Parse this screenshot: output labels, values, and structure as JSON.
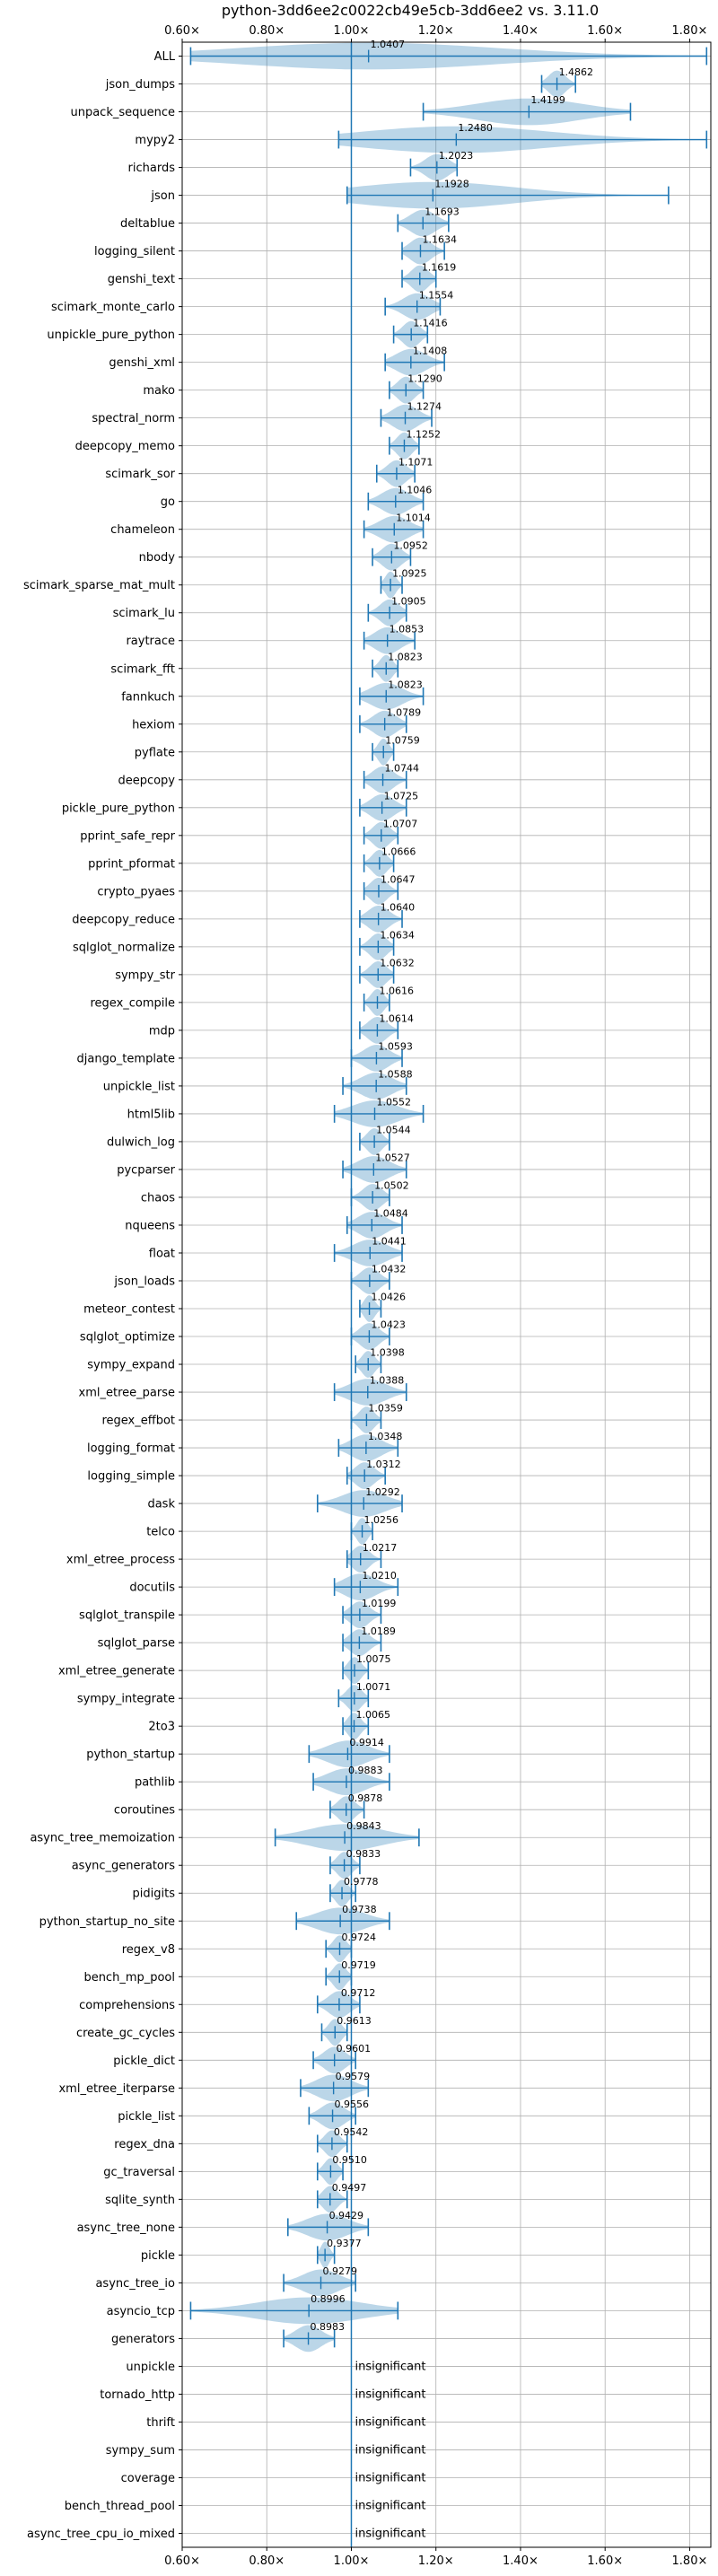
{
  "chart_data": {
    "type": "violin",
    "title": "python-3dd6ee2c0022cb49e5cb-3dd6ee2 vs. 3.11.0",
    "xlim": [
      0.6,
      1.85
    ],
    "xticks": [
      0.6,
      0.8,
      1.0,
      1.2,
      1.4,
      1.6,
      1.8
    ],
    "xtick_labels": [
      "0.60×",
      "0.80×",
      "1.00×",
      "1.20×",
      "1.40×",
      "1.60×",
      "1.80×"
    ],
    "reference_line": 1.0,
    "grid": true,
    "insignificant_text": "insignificant",
    "colors": {
      "violin": "#1f77b4",
      "line": "#1f77b4",
      "grid": "#b0b0b0"
    },
    "benchmarks": [
      {
        "name": "ALL",
        "median": 1.0407,
        "label": "1.0407",
        "min": 0.62,
        "max": 1.84,
        "spread": 0.09
      },
      {
        "name": "json_dumps",
        "median": 1.4862,
        "label": "1.4862",
        "min": 1.45,
        "max": 1.53,
        "spread": 0.03
      },
      {
        "name": "unpack_sequence",
        "median": 1.4199,
        "label": "1.4199",
        "min": 1.17,
        "max": 1.66,
        "spread": 0.1
      },
      {
        "name": "mypy2",
        "median": 1.248,
        "label": "1.2480",
        "min": 0.97,
        "max": 1.84,
        "spread": 0.09
      },
      {
        "name": "richards",
        "median": 1.2023,
        "label": "1.2023",
        "min": 1.14,
        "max": 1.25,
        "spread": 0.03
      },
      {
        "name": "json",
        "median": 1.1928,
        "label": "1.1928",
        "min": 0.99,
        "max": 1.75,
        "spread": 0.09
      },
      {
        "name": "deltablue",
        "median": 1.1693,
        "label": "1.1693",
        "min": 1.11,
        "max": 1.23,
        "spread": 0.03
      },
      {
        "name": "logging_silent",
        "median": 1.1634,
        "label": "1.1634",
        "min": 1.12,
        "max": 1.22,
        "spread": 0.03
      },
      {
        "name": "genshi_text",
        "median": 1.1619,
        "label": "1.1619",
        "min": 1.12,
        "max": 1.2,
        "spread": 0.03
      },
      {
        "name": "scimark_monte_carlo",
        "median": 1.1554,
        "label": "1.1554",
        "min": 1.08,
        "max": 1.21,
        "spread": 0.03
      },
      {
        "name": "unpickle_pure_python",
        "median": 1.1416,
        "label": "1.1416",
        "min": 1.1,
        "max": 1.18,
        "spread": 0.03
      },
      {
        "name": "genshi_xml",
        "median": 1.1408,
        "label": "1.1408",
        "min": 1.08,
        "max": 1.22,
        "spread": 0.03
      },
      {
        "name": "mako",
        "median": 1.129,
        "label": "1.1290",
        "min": 1.09,
        "max": 1.17,
        "spread": 0.03
      },
      {
        "name": "spectral_norm",
        "median": 1.1274,
        "label": "1.1274",
        "min": 1.07,
        "max": 1.19,
        "spread": 0.03
      },
      {
        "name": "deepcopy_memo",
        "median": 1.1252,
        "label": "1.1252",
        "min": 1.09,
        "max": 1.16,
        "spread": 0.03
      },
      {
        "name": "scimark_sor",
        "median": 1.1071,
        "label": "1.1071",
        "min": 1.06,
        "max": 1.15,
        "spread": 0.03
      },
      {
        "name": "go",
        "median": 1.1046,
        "label": "1.1046",
        "min": 1.04,
        "max": 1.17,
        "spread": 0.03
      },
      {
        "name": "chameleon",
        "median": 1.1014,
        "label": "1.1014",
        "min": 1.03,
        "max": 1.17,
        "spread": 0.03
      },
      {
        "name": "nbody",
        "median": 1.0952,
        "label": "1.0952",
        "min": 1.05,
        "max": 1.14,
        "spread": 0.03
      },
      {
        "name": "scimark_sparse_mat_mult",
        "median": 1.0925,
        "label": "1.0925",
        "min": 1.07,
        "max": 1.12,
        "spread": 0.03
      },
      {
        "name": "scimark_lu",
        "median": 1.0905,
        "label": "1.0905",
        "min": 1.04,
        "max": 1.13,
        "spread": 0.03
      },
      {
        "name": "raytrace",
        "median": 1.0853,
        "label": "1.0853",
        "min": 1.03,
        "max": 1.15,
        "spread": 0.03
      },
      {
        "name": "scimark_fft",
        "median": 1.0823,
        "label": "1.0823",
        "min": 1.05,
        "max": 1.11,
        "spread": 0.03
      },
      {
        "name": "fannkuch",
        "median": 1.0823,
        "label": "1.0823",
        "min": 1.02,
        "max": 1.17,
        "spread": 0.03
      },
      {
        "name": "hexiom",
        "median": 1.0789,
        "label": "1.0789",
        "min": 1.02,
        "max": 1.13,
        "spread": 0.03
      },
      {
        "name": "pyflate",
        "median": 1.0759,
        "label": "1.0759",
        "min": 1.05,
        "max": 1.1,
        "spread": 0.03
      },
      {
        "name": "deepcopy",
        "median": 1.0744,
        "label": "1.0744",
        "min": 1.03,
        "max": 1.13,
        "spread": 0.03
      },
      {
        "name": "pickle_pure_python",
        "median": 1.0725,
        "label": "1.0725",
        "min": 1.02,
        "max": 1.13,
        "spread": 0.03
      },
      {
        "name": "pprint_safe_repr",
        "median": 1.0707,
        "label": "1.0707",
        "min": 1.03,
        "max": 1.11,
        "spread": 0.03
      },
      {
        "name": "pprint_pformat",
        "median": 1.0666,
        "label": "1.0666",
        "min": 1.03,
        "max": 1.1,
        "spread": 0.03
      },
      {
        "name": "crypto_pyaes",
        "median": 1.0647,
        "label": "1.0647",
        "min": 1.03,
        "max": 1.11,
        "spread": 0.03
      },
      {
        "name": "deepcopy_reduce",
        "median": 1.064,
        "label": "1.0640",
        "min": 1.02,
        "max": 1.12,
        "spread": 0.03
      },
      {
        "name": "sqlglot_normalize",
        "median": 1.0634,
        "label": "1.0634",
        "min": 1.02,
        "max": 1.1,
        "spread": 0.03
      },
      {
        "name": "sympy_str",
        "median": 1.0632,
        "label": "1.0632",
        "min": 1.02,
        "max": 1.1,
        "spread": 0.03
      },
      {
        "name": "regex_compile",
        "median": 1.0616,
        "label": "1.0616",
        "min": 1.03,
        "max": 1.09,
        "spread": 0.03
      },
      {
        "name": "mdp",
        "median": 1.0614,
        "label": "1.0614",
        "min": 1.02,
        "max": 1.11,
        "spread": 0.03
      },
      {
        "name": "django_template",
        "median": 1.0593,
        "label": "1.0593",
        "min": 1.0,
        "max": 1.12,
        "spread": 0.03
      },
      {
        "name": "unpickle_list",
        "median": 1.0588,
        "label": "1.0588",
        "min": 0.98,
        "max": 1.13,
        "spread": 0.03
      },
      {
        "name": "html5lib",
        "median": 1.0552,
        "label": "1.0552",
        "min": 0.96,
        "max": 1.17,
        "spread": 0.03
      },
      {
        "name": "dulwich_log",
        "median": 1.0544,
        "label": "1.0544",
        "min": 1.02,
        "max": 1.09,
        "spread": 0.03
      },
      {
        "name": "pycparser",
        "median": 1.0527,
        "label": "1.0527",
        "min": 0.98,
        "max": 1.13,
        "spread": 0.03
      },
      {
        "name": "chaos",
        "median": 1.0502,
        "label": "1.0502",
        "min": 1.0,
        "max": 1.09,
        "spread": 0.03
      },
      {
        "name": "nqueens",
        "median": 1.0484,
        "label": "1.0484",
        "min": 0.99,
        "max": 1.12,
        "spread": 0.03
      },
      {
        "name": "float",
        "median": 1.0441,
        "label": "1.0441",
        "min": 0.96,
        "max": 1.12,
        "spread": 0.03
      },
      {
        "name": "json_loads",
        "median": 1.0432,
        "label": "1.0432",
        "min": 1.0,
        "max": 1.09,
        "spread": 0.03
      },
      {
        "name": "meteor_contest",
        "median": 1.0426,
        "label": "1.0426",
        "min": 1.02,
        "max": 1.07,
        "spread": 0.03
      },
      {
        "name": "sqlglot_optimize",
        "median": 1.0423,
        "label": "1.0423",
        "min": 1.0,
        "max": 1.09,
        "spread": 0.03
      },
      {
        "name": "sympy_expand",
        "median": 1.0398,
        "label": "1.0398",
        "min": 1.01,
        "max": 1.07,
        "spread": 0.03
      },
      {
        "name": "xml_etree_parse",
        "median": 1.0388,
        "label": "1.0388",
        "min": 0.96,
        "max": 1.13,
        "spread": 0.03
      },
      {
        "name": "regex_effbot",
        "median": 1.0359,
        "label": "1.0359",
        "min": 1.0,
        "max": 1.07,
        "spread": 0.03
      },
      {
        "name": "logging_format",
        "median": 1.0348,
        "label": "1.0348",
        "min": 0.97,
        "max": 1.11,
        "spread": 0.03
      },
      {
        "name": "logging_simple",
        "median": 1.0312,
        "label": "1.0312",
        "min": 0.99,
        "max": 1.08,
        "spread": 0.03
      },
      {
        "name": "dask",
        "median": 1.0292,
        "label": "1.0292",
        "min": 0.92,
        "max": 1.12,
        "spread": 0.03
      },
      {
        "name": "telco",
        "median": 1.0256,
        "label": "1.0256",
        "min": 1.0,
        "max": 1.05,
        "spread": 0.03
      },
      {
        "name": "xml_etree_process",
        "median": 1.0217,
        "label": "1.0217",
        "min": 0.99,
        "max": 1.07,
        "spread": 0.03
      },
      {
        "name": "docutils",
        "median": 1.021,
        "label": "1.0210",
        "min": 0.96,
        "max": 1.11,
        "spread": 0.03
      },
      {
        "name": "sqlglot_transpile",
        "median": 1.0199,
        "label": "1.0199",
        "min": 0.98,
        "max": 1.07,
        "spread": 0.03
      },
      {
        "name": "sqlglot_parse",
        "median": 1.0189,
        "label": "1.0189",
        "min": 0.98,
        "max": 1.07,
        "spread": 0.03
      },
      {
        "name": "xml_etree_generate",
        "median": 1.0075,
        "label": "1.0075",
        "min": 0.98,
        "max": 1.04,
        "spread": 0.03
      },
      {
        "name": "sympy_integrate",
        "median": 1.0071,
        "label": "1.0071",
        "min": 0.97,
        "max": 1.04,
        "spread": 0.03
      },
      {
        "name": "2to3",
        "median": 1.0065,
        "label": "1.0065",
        "min": 0.98,
        "max": 1.04,
        "spread": 0.03
      },
      {
        "name": "python_startup",
        "median": 0.9914,
        "label": "0.9914",
        "min": 0.9,
        "max": 1.09,
        "spread": 0.03
      },
      {
        "name": "pathlib",
        "median": 0.9883,
        "label": "0.9883",
        "min": 0.91,
        "max": 1.09,
        "spread": 0.03
      },
      {
        "name": "coroutines",
        "median": 0.9878,
        "label": "0.9878",
        "min": 0.95,
        "max": 1.03,
        "spread": 0.03
      },
      {
        "name": "async_tree_memoization",
        "median": 0.9843,
        "label": "0.9843",
        "min": 0.82,
        "max": 1.16,
        "spread": 0.05
      },
      {
        "name": "async_generators",
        "median": 0.9833,
        "label": "0.9833",
        "min": 0.95,
        "max": 1.02,
        "spread": 0.03
      },
      {
        "name": "pidigits",
        "median": 0.9778,
        "label": "0.9778",
        "min": 0.95,
        "max": 1.01,
        "spread": 0.03
      },
      {
        "name": "python_startup_no_site",
        "median": 0.9738,
        "label": "0.9738",
        "min": 0.87,
        "max": 1.09,
        "spread": 0.03
      },
      {
        "name": "regex_v8",
        "median": 0.9724,
        "label": "0.9724",
        "min": 0.94,
        "max": 1.0,
        "spread": 0.03
      },
      {
        "name": "bench_mp_pool",
        "median": 0.9719,
        "label": "0.9719",
        "min": 0.94,
        "max": 1.0,
        "spread": 0.03
      },
      {
        "name": "comprehensions",
        "median": 0.9712,
        "label": "0.9712",
        "min": 0.92,
        "max": 1.02,
        "spread": 0.03
      },
      {
        "name": "create_gc_cycles",
        "median": 0.9613,
        "label": "0.9613",
        "min": 0.93,
        "max": 0.99,
        "spread": 0.03
      },
      {
        "name": "pickle_dict",
        "median": 0.9601,
        "label": "0.9601",
        "min": 0.91,
        "max": 1.01,
        "spread": 0.03
      },
      {
        "name": "xml_etree_iterparse",
        "median": 0.9579,
        "label": "0.9579",
        "min": 0.88,
        "max": 1.04,
        "spread": 0.03
      },
      {
        "name": "pickle_list",
        "median": 0.9556,
        "label": "0.9556",
        "min": 0.9,
        "max": 1.01,
        "spread": 0.03
      },
      {
        "name": "regex_dna",
        "median": 0.9542,
        "label": "0.9542",
        "min": 0.92,
        "max": 0.99,
        "spread": 0.03
      },
      {
        "name": "gc_traversal",
        "median": 0.951,
        "label": "0.9510",
        "min": 0.92,
        "max": 0.98,
        "spread": 0.03
      },
      {
        "name": "sqlite_synth",
        "median": 0.9497,
        "label": "0.9497",
        "min": 0.92,
        "max": 0.99,
        "spread": 0.03
      },
      {
        "name": "async_tree_none",
        "median": 0.9429,
        "label": "0.9429",
        "min": 0.85,
        "max": 1.04,
        "spread": 0.03
      },
      {
        "name": "pickle",
        "median": 0.9377,
        "label": "0.9377",
        "min": 0.92,
        "max": 0.96,
        "spread": 0.03
      },
      {
        "name": "async_tree_io",
        "median": 0.9279,
        "label": "0.9279",
        "min": 0.84,
        "max": 1.01,
        "spread": 0.03
      },
      {
        "name": "asyncio_tcp",
        "median": 0.8996,
        "label": "0.8996",
        "min": 0.62,
        "max": 1.11,
        "spread": 0.05
      },
      {
        "name": "generators",
        "median": 0.8983,
        "label": "0.8983",
        "min": 0.84,
        "max": 0.96,
        "spread": 0.03
      },
      {
        "name": "unpickle",
        "insignificant": true
      },
      {
        "name": "tornado_http",
        "insignificant": true
      },
      {
        "name": "thrift",
        "insignificant": true
      },
      {
        "name": "sympy_sum",
        "insignificant": true
      },
      {
        "name": "coverage",
        "insignificant": true
      },
      {
        "name": "bench_thread_pool",
        "insignificant": true
      },
      {
        "name": "async_tree_cpu_io_mixed",
        "insignificant": true
      }
    ]
  }
}
